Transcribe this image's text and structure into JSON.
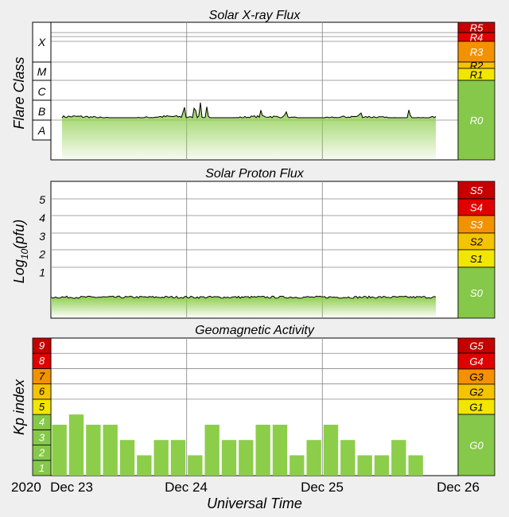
{
  "colors": {
    "background": "#efefef",
    "bar_green": "#8ccd4a",
    "scale_green": "#86c84a",
    "yellow": "#f2e600",
    "amber": "#f5c400",
    "orange": "#f39200",
    "red_orange": "#ee4400",
    "red": "#e00000",
    "dark_red": "#c40000"
  },
  "time_axis": {
    "year_label": "2020",
    "tick_labels": [
      "Dec 23",
      "Dec 24",
      "Dec 25",
      "Dec 26"
    ],
    "xlabel": "Universal Time"
  },
  "chart_data": [
    {
      "type": "area",
      "title": "Solar X-ray Flux",
      "ylabel": "Flare Class",
      "y_classes": [
        "A",
        "B",
        "C",
        "M",
        "X"
      ],
      "scale_labels": [
        "R5",
        "R4",
        "R3",
        "R2",
        "R1",
        "R0"
      ],
      "scale_highlight": "R0",
      "x_range_days": [
        0,
        3
      ],
      "ylim_class": [
        0,
        5
      ],
      "y_range_class": [
        0.8,
        1.6
      ],
      "peaks": [
        {
          "x": 0.98,
          "y": 1.88
        },
        {
          "x": 1.06,
          "y": 1.95
        },
        {
          "x": 1.1,
          "y": 1.92
        },
        {
          "x": 1.15,
          "y": 1.7
        },
        {
          "x": 1.55,
          "y": 1.58
        },
        {
          "x": 1.73,
          "y": 1.55
        },
        {
          "x": 2.28,
          "y": 1.52
        },
        {
          "x": 2.64,
          "y": 1.6
        }
      ]
    },
    {
      "type": "area",
      "title": "Solar Proton Flux",
      "ylabel": "Log10(pfu)",
      "ylabel_main": "Log",
      "ylabel_sub": "10",
      "ylabel_tail": "(pfu)",
      "yticks": [
        "1",
        "2",
        "3",
        "4",
        "5"
      ],
      "scale_labels": [
        "S5",
        "S4",
        "S3",
        "S2",
        "S1",
        "S0"
      ],
      "scale_highlight": "S0",
      "ylim": [
        -1.5,
        6
      ],
      "x_range_days": [
        0,
        3
      ],
      "y_level": -0.35
    },
    {
      "type": "bar",
      "title": "Geomagnetic Activity",
      "ylabel": "Kp index",
      "yticks": [
        "1",
        "2",
        "3",
        "4",
        "5",
        "6",
        "7",
        "8",
        "9"
      ],
      "scale_labels": [
        "G5",
        "G4",
        "G3",
        "G2",
        "G1",
        "G0"
      ],
      "scale_highlight": "G0",
      "ylim": [
        0,
        9
      ],
      "bin_hours": 3,
      "values": [
        3.33,
        4,
        3.33,
        3.33,
        2.33,
        1.33,
        2.33,
        2.33,
        1.33,
        3.33,
        2.33,
        2.33,
        3.33,
        3.33,
        1.33,
        2.33,
        3.33,
        2.33,
        1.33,
        1.33,
        2.33,
        1.33,
        0,
        0
      ]
    }
  ]
}
